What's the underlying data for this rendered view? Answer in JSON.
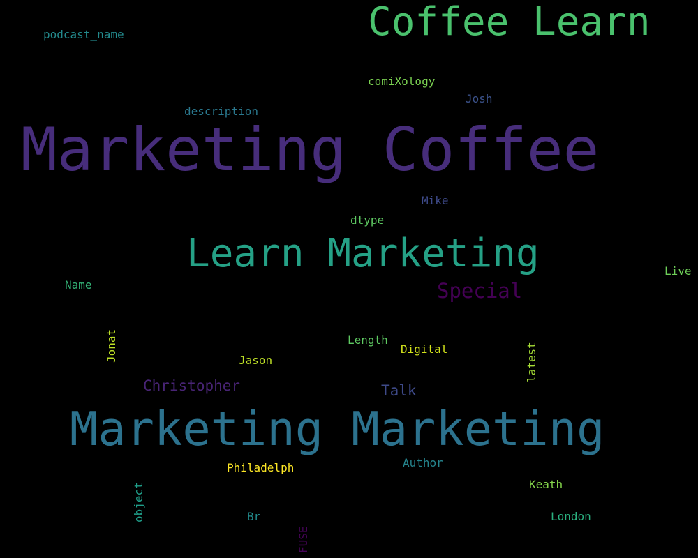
{
  "words": [
    {
      "text": "Coffee Learn",
      "color": "#4ac16d"
    },
    {
      "text": "podcast_name",
      "color": "#238a8d"
    },
    {
      "text": "comiXology",
      "color": "#7ad151"
    },
    {
      "text": "Josh",
      "color": "#3b528b"
    },
    {
      "text": "description",
      "color": "#2a788e"
    },
    {
      "text": "Marketing Coffee",
      "color": "#472d7b"
    },
    {
      "text": "Mike",
      "color": "#3e4a89"
    },
    {
      "text": "dtype",
      "color": "#5ec962"
    },
    {
      "text": "Learn Marketing",
      "color": "#25a186"
    },
    {
      "text": "Live",
      "color": "#6ece58"
    },
    {
      "text": "Name",
      "color": "#35b779"
    },
    {
      "text": "Special",
      "color": "#440154"
    },
    {
      "text": "Jonat",
      "color": "#bddf26"
    },
    {
      "text": "Length",
      "color": "#5ec962"
    },
    {
      "text": "Digital",
      "color": "#d2e21b"
    },
    {
      "text": "latest",
      "color": "#a5db36"
    },
    {
      "text": "Jason",
      "color": "#bddf26"
    },
    {
      "text": "Christopher",
      "color": "#482475"
    },
    {
      "text": "Talk",
      "color": "#3e4a89"
    },
    {
      "text": "Marketing Marketing",
      "color": "#2c728e"
    },
    {
      "text": "Philadelph",
      "color": "#fde725"
    },
    {
      "text": "Author",
      "color": "#25858e"
    },
    {
      "text": "Keath",
      "color": "#84d44b"
    },
    {
      "text": "object",
      "color": "#1f9e89"
    },
    {
      "text": "Br",
      "color": "#228c8d"
    },
    {
      "text": "London",
      "color": "#2ab07f"
    },
    {
      "text": "FUSE",
      "color": "#450457"
    }
  ]
}
